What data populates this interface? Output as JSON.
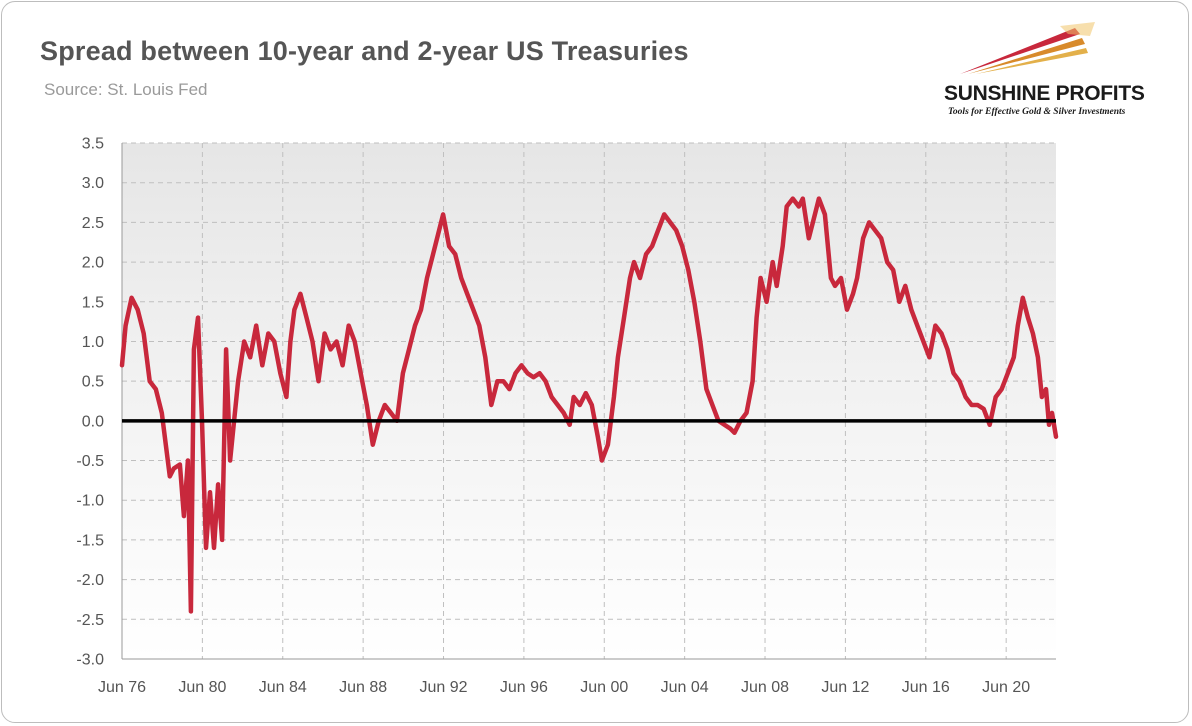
{
  "title": "Spread between 10-year and 2-year US Treasuries",
  "subtitle": "Source: St. Louis Fed",
  "logo": {
    "name": "SUNSHINE PROFITS",
    "tagline": "Tools for Effective Gold & Silver Investments"
  },
  "colors": {
    "series": "#c8283c",
    "zero_line": "#000000",
    "grid": "#bfbfbf",
    "plot_bg_top": "#e6e6e6",
    "plot_bg_bottom": "#ffffff"
  },
  "chart_data": {
    "type": "line",
    "title": "Spread between 10-year and 2-year US Treasuries",
    "xlabel": "",
    "ylabel": "",
    "ylim": [
      -3.0,
      3.5
    ],
    "xlim": [
      1976.42,
      2022.9
    ],
    "grid": true,
    "y_ticks": [
      "3.5",
      "3.0",
      "2.5",
      "2.0",
      "1.5",
      "1.0",
      "0.5",
      "0.0",
      "-0.5",
      "-1.0",
      "-1.5",
      "-2.0",
      "-2.5",
      "-3.0"
    ],
    "x_ticks": [
      {
        "label": "Jun 76",
        "x": 1976.42
      },
      {
        "label": "Jun 80",
        "x": 1980.42
      },
      {
        "label": "Jun 84",
        "x": 1984.42
      },
      {
        "label": "Jun 88",
        "x": 1988.42
      },
      {
        "label": "Jun 92",
        "x": 1992.42
      },
      {
        "label": "Jun 96",
        "x": 1996.42
      },
      {
        "label": "Jun 00",
        "x": 2000.42
      },
      {
        "label": "Jun 04",
        "x": 2004.42
      },
      {
        "label": "Jun 08",
        "x": 2008.42
      },
      {
        "label": "Jun 12",
        "x": 2012.42
      },
      {
        "label": "Jun 16",
        "x": 2016.42
      },
      {
        "label": "Jun 20",
        "x": 2020.42
      }
    ],
    "series": [
      {
        "values": [
          [
            1976.42,
            0.7
          ],
          [
            1976.6,
            1.2
          ],
          [
            1976.9,
            1.55
          ],
          [
            1977.2,
            1.4
          ],
          [
            1977.5,
            1.1
          ],
          [
            1977.8,
            0.5
          ],
          [
            1978.1,
            0.4
          ],
          [
            1978.4,
            0.1
          ],
          [
            1978.6,
            -0.3
          ],
          [
            1978.8,
            -0.7
          ],
          [
            1979.0,
            -0.6
          ],
          [
            1979.3,
            -0.55
          ],
          [
            1979.5,
            -1.2
          ],
          [
            1979.7,
            -0.5
          ],
          [
            1979.85,
            -2.4
          ],
          [
            1980.0,
            0.9
          ],
          [
            1980.2,
            1.3
          ],
          [
            1980.4,
            0.0
          ],
          [
            1980.6,
            -1.6
          ],
          [
            1980.8,
            -0.9
          ],
          [
            1981.0,
            -1.6
          ],
          [
            1981.2,
            -0.8
          ],
          [
            1981.4,
            -1.5
          ],
          [
            1981.6,
            0.9
          ],
          [
            1981.8,
            -0.5
          ],
          [
            1982.0,
            0.0
          ],
          [
            1982.2,
            0.5
          ],
          [
            1982.5,
            1.0
          ],
          [
            1982.8,
            0.8
          ],
          [
            1983.1,
            1.2
          ],
          [
            1983.4,
            0.7
          ],
          [
            1983.7,
            1.1
          ],
          [
            1984.0,
            1.0
          ],
          [
            1984.3,
            0.6
          ],
          [
            1984.6,
            0.3
          ],
          [
            1984.8,
            1.0
          ],
          [
            1985.0,
            1.4
          ],
          [
            1985.3,
            1.6
          ],
          [
            1985.6,
            1.3
          ],
          [
            1985.9,
            1.0
          ],
          [
            1986.2,
            0.5
          ],
          [
            1986.5,
            1.1
          ],
          [
            1986.8,
            0.9
          ],
          [
            1987.1,
            1.0
          ],
          [
            1987.4,
            0.7
          ],
          [
            1987.7,
            1.2
          ],
          [
            1988.0,
            1.0
          ],
          [
            1988.3,
            0.6
          ],
          [
            1988.6,
            0.2
          ],
          [
            1988.9,
            -0.3
          ],
          [
            1989.2,
            0.0
          ],
          [
            1989.5,
            0.2
          ],
          [
            1989.8,
            0.1
          ],
          [
            1990.1,
            0.0
          ],
          [
            1990.4,
            0.6
          ],
          [
            1990.7,
            0.9
          ],
          [
            1991.0,
            1.2
          ],
          [
            1991.3,
            1.4
          ],
          [
            1991.6,
            1.8
          ],
          [
            1991.9,
            2.1
          ],
          [
            1992.2,
            2.4
          ],
          [
            1992.4,
            2.6
          ],
          [
            1992.7,
            2.2
          ],
          [
            1993.0,
            2.1
          ],
          [
            1993.3,
            1.8
          ],
          [
            1993.6,
            1.6
          ],
          [
            1993.9,
            1.4
          ],
          [
            1994.2,
            1.2
          ],
          [
            1994.5,
            0.8
          ],
          [
            1994.8,
            0.2
          ],
          [
            1995.1,
            0.5
          ],
          [
            1995.4,
            0.5
          ],
          [
            1995.7,
            0.4
          ],
          [
            1996.0,
            0.6
          ],
          [
            1996.3,
            0.7
          ],
          [
            1996.6,
            0.6
          ],
          [
            1996.9,
            0.55
          ],
          [
            1997.2,
            0.6
          ],
          [
            1997.5,
            0.5
          ],
          [
            1997.8,
            0.3
          ],
          [
            1998.1,
            0.2
          ],
          [
            1998.4,
            0.1
          ],
          [
            1998.7,
            -0.05
          ],
          [
            1998.9,
            0.3
          ],
          [
            1999.2,
            0.2
          ],
          [
            1999.5,
            0.35
          ],
          [
            1999.8,
            0.2
          ],
          [
            2000.1,
            -0.2
          ],
          [
            2000.3,
            -0.5
          ],
          [
            2000.6,
            -0.3
          ],
          [
            2000.9,
            0.3
          ],
          [
            2001.1,
            0.8
          ],
          [
            2001.4,
            1.3
          ],
          [
            2001.7,
            1.8
          ],
          [
            2001.9,
            2.0
          ],
          [
            2002.2,
            1.8
          ],
          [
            2002.5,
            2.1
          ],
          [
            2002.8,
            2.2
          ],
          [
            2003.1,
            2.4
          ],
          [
            2003.4,
            2.6
          ],
          [
            2003.7,
            2.5
          ],
          [
            2004.0,
            2.4
          ],
          [
            2004.3,
            2.2
          ],
          [
            2004.6,
            1.9
          ],
          [
            2004.9,
            1.5
          ],
          [
            2005.2,
            1.0
          ],
          [
            2005.5,
            0.4
          ],
          [
            2005.8,
            0.2
          ],
          [
            2006.1,
            0.0
          ],
          [
            2006.4,
            -0.05
          ],
          [
            2006.7,
            -0.1
          ],
          [
            2006.9,
            -0.15
          ],
          [
            2007.2,
            0.0
          ],
          [
            2007.5,
            0.1
          ],
          [
            2007.8,
            0.5
          ],
          [
            2008.0,
            1.3
          ],
          [
            2008.2,
            1.8
          ],
          [
            2008.5,
            1.5
          ],
          [
            2008.8,
            2.0
          ],
          [
            2009.0,
            1.7
          ],
          [
            2009.3,
            2.2
          ],
          [
            2009.5,
            2.7
          ],
          [
            2009.8,
            2.8
          ],
          [
            2010.1,
            2.7
          ],
          [
            2010.3,
            2.8
          ],
          [
            2010.6,
            2.3
          ],
          [
            2010.9,
            2.6
          ],
          [
            2011.1,
            2.8
          ],
          [
            2011.4,
            2.6
          ],
          [
            2011.7,
            1.8
          ],
          [
            2011.9,
            1.7
          ],
          [
            2012.2,
            1.8
          ],
          [
            2012.5,
            1.4
          ],
          [
            2012.8,
            1.6
          ],
          [
            2013.0,
            1.8
          ],
          [
            2013.3,
            2.3
          ],
          [
            2013.6,
            2.5
          ],
          [
            2013.9,
            2.4
          ],
          [
            2014.2,
            2.3
          ],
          [
            2014.5,
            2.0
          ],
          [
            2014.8,
            1.9
          ],
          [
            2015.1,
            1.5
          ],
          [
            2015.4,
            1.7
          ],
          [
            2015.7,
            1.4
          ],
          [
            2016.0,
            1.2
          ],
          [
            2016.3,
            1.0
          ],
          [
            2016.6,
            0.8
          ],
          [
            2016.9,
            1.2
          ],
          [
            2017.2,
            1.1
          ],
          [
            2017.5,
            0.9
          ],
          [
            2017.8,
            0.6
          ],
          [
            2018.1,
            0.5
          ],
          [
            2018.4,
            0.3
          ],
          [
            2018.7,
            0.2
          ],
          [
            2019.0,
            0.2
          ],
          [
            2019.3,
            0.15
          ],
          [
            2019.6,
            -0.05
          ],
          [
            2019.9,
            0.3
          ],
          [
            2020.2,
            0.4
          ],
          [
            2020.5,
            0.6
          ],
          [
            2020.8,
            0.8
          ],
          [
            2021.0,
            1.2
          ],
          [
            2021.25,
            1.55
          ],
          [
            2021.5,
            1.3
          ],
          [
            2021.75,
            1.1
          ],
          [
            2022.0,
            0.8
          ],
          [
            2022.2,
            0.3
          ],
          [
            2022.4,
            0.4
          ],
          [
            2022.55,
            -0.05
          ],
          [
            2022.7,
            0.1
          ],
          [
            2022.9,
            -0.2
          ]
        ]
      }
    ]
  }
}
